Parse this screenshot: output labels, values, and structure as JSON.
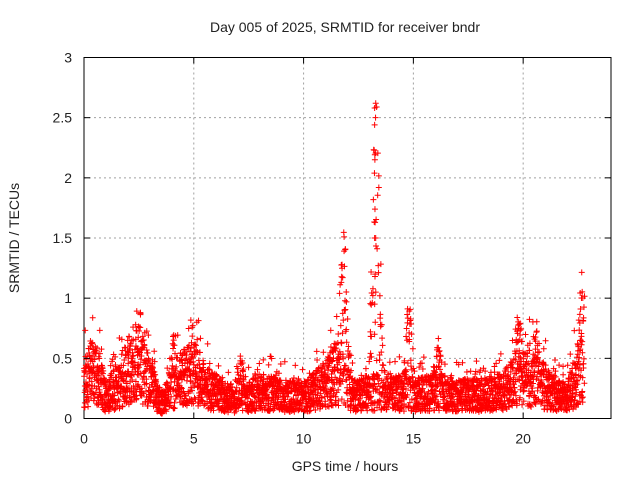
{
  "chart_data": {
    "type": "scatter",
    "title": "Day 005 of 2025, SRMTID for receiver bndr",
    "xlabel": "GPS time / hours",
    "ylabel": "SRMTID / TECUs",
    "xlim": [
      0,
      24
    ],
    "ylim": [
      0,
      3
    ],
    "x_ticks": [
      "0",
      "5",
      "10",
      "15",
      "20"
    ],
    "y_ticks": [
      "0",
      "0.5",
      "1",
      "1.5",
      "2",
      "2.5",
      "3"
    ],
    "grid": true,
    "marker": "+",
    "color": "#ff0000",
    "baseline": [
      [
        0.0,
        0.35
      ],
      [
        0.5,
        0.45
      ],
      [
        1.0,
        0.2
      ],
      [
        1.5,
        0.3
      ],
      [
        2.0,
        0.45
      ],
      [
        2.5,
        0.5
      ],
      [
        3.0,
        0.35
      ],
      [
        3.5,
        0.15
      ],
      [
        4.0,
        0.25
      ],
      [
        4.5,
        0.4
      ],
      [
        5.0,
        0.45
      ],
      [
        5.5,
        0.3
      ],
      [
        6.0,
        0.25
      ],
      [
        6.5,
        0.2
      ],
      [
        7.0,
        0.15
      ],
      [
        7.5,
        0.2
      ],
      [
        8.0,
        0.25
      ],
      [
        9.0,
        0.22
      ],
      [
        10.0,
        0.2
      ],
      [
        10.8,
        0.3
      ],
      [
        11.5,
        0.45
      ],
      [
        12.3,
        0.2
      ],
      [
        13.0,
        0.25
      ],
      [
        14.0,
        0.25
      ],
      [
        15.0,
        0.22
      ],
      [
        16.0,
        0.25
      ],
      [
        17.0,
        0.22
      ],
      [
        18.0,
        0.22
      ],
      [
        19.0,
        0.25
      ],
      [
        20.0,
        0.4
      ],
      [
        20.7,
        0.35
      ],
      [
        21.5,
        0.22
      ],
      [
        22.0,
        0.2
      ],
      [
        22.6,
        0.45
      ],
      [
        22.8,
        0.4
      ]
    ],
    "peaks": [
      {
        "x": 2.6,
        "y": 0.88
      },
      {
        "x": 4.1,
        "y": 0.77
      },
      {
        "x": 5.0,
        "y": 0.82
      },
      {
        "x": 7.1,
        "y": 0.63
      },
      {
        "x": 11.8,
        "y": 1.62
      },
      {
        "x": 13.3,
        "y": 2.62
      },
      {
        "x": 14.8,
        "y": 1.0
      },
      {
        "x": 16.1,
        "y": 0.76
      },
      {
        "x": 19.8,
        "y": 0.92
      },
      {
        "x": 20.6,
        "y": 0.87
      },
      {
        "x": 22.7,
        "y": 1.28
      }
    ],
    "spike": {
      "x": 13.25,
      "values": [
        2.62,
        2.58,
        2.5,
        2.44,
        2.23,
        2.15,
        1.74,
        1.5,
        1.2,
        1.18,
        1.05,
        0.95,
        0.8,
        0.7
      ]
    }
  }
}
